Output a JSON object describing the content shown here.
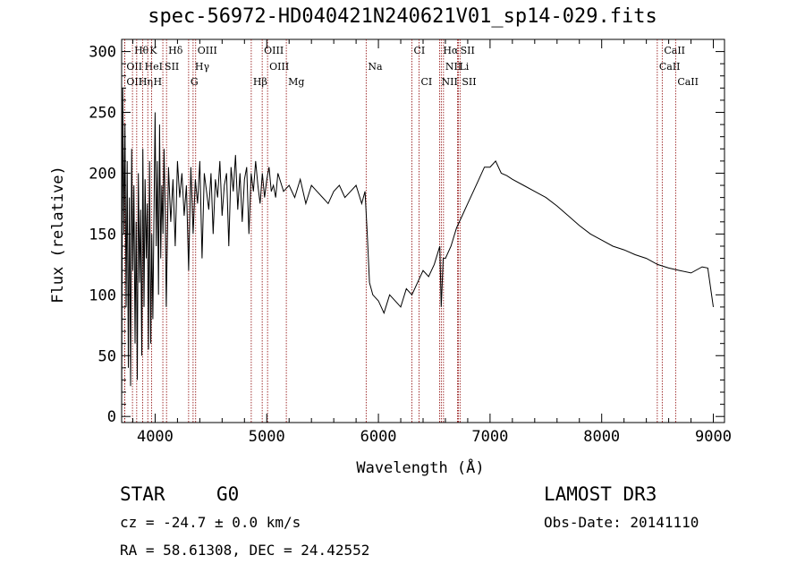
{
  "title": "spec-56972-HD040421N240621V01_sp14-029.fits",
  "info": {
    "object_class": "STAR",
    "subclass": "G0",
    "survey": "LAMOST DR3",
    "cz": "cz = -24.7 ± 0.0 km/s",
    "obs_date": "Obs-Date: 20141110",
    "coords": "RA =  58.61308, DEC =  24.42552"
  },
  "chart_data": {
    "type": "line",
    "xlabel": "Wavelength (Å)",
    "ylabel": "Flux (relative)",
    "xlim": [
      3700,
      9100
    ],
    "ylim": [
      -5,
      310
    ],
    "xticks": [
      4000,
      5000,
      6000,
      7000,
      8000,
      9000
    ],
    "yticks": [
      0,
      50,
      100,
      150,
      200,
      250,
      300
    ],
    "line_color": "#000000",
    "marker_color": "#8b0000",
    "spectrum": {
      "x": [
        3700,
        3710,
        3720,
        3730,
        3740,
        3750,
        3760,
        3770,
        3780,
        3790,
        3800,
        3810,
        3820,
        3830,
        3840,
        3850,
        3860,
        3870,
        3880,
        3890,
        3900,
        3910,
        3920,
        3930,
        3940,
        3950,
        3960,
        3970,
        3980,
        3990,
        4000,
        4010,
        4020,
        4030,
        4040,
        4050,
        4060,
        4070,
        4080,
        4090,
        4100,
        4120,
        4140,
        4160,
        4180,
        4200,
        4220,
        4240,
        4260,
        4280,
        4300,
        4320,
        4340,
        4360,
        4380,
        4400,
        4420,
        4440,
        4460,
        4480,
        4500,
        4520,
        4540,
        4560,
        4580,
        4600,
        4620,
        4640,
        4660,
        4680,
        4700,
        4720,
        4740,
        4760,
        4780,
        4800,
        4820,
        4840,
        4860,
        4880,
        4900,
        4920,
        4940,
        4960,
        4980,
        5000,
        5020,
        5040,
        5060,
        5080,
        5100,
        5150,
        5200,
        5250,
        5300,
        5350,
        5400,
        5450,
        5500,
        5550,
        5600,
        5650,
        5700,
        5750,
        5800,
        5850,
        5880,
        5900,
        5920,
        5950,
        6000,
        6050,
        6100,
        6150,
        6200,
        6250,
        6300,
        6350,
        6400,
        6450,
        6500,
        6550,
        6563,
        6580,
        6600,
        6650,
        6700,
        6750,
        6800,
        6850,
        6900,
        6950,
        7000,
        7050,
        7100,
        7150,
        7200,
        7300,
        7400,
        7500,
        7600,
        7700,
        7800,
        7900,
        8000,
        8100,
        8200,
        8300,
        8400,
        8500,
        8600,
        8700,
        8800,
        8900,
        8950,
        9000
      ],
      "y": [
        0,
        270,
        150,
        240,
        90,
        210,
        40,
        180,
        25,
        220,
        120,
        190,
        60,
        160,
        30,
        200,
        110,
        170,
        50,
        220,
        90,
        195,
        130,
        175,
        55,
        210,
        60,
        150,
        80,
        170,
        250,
        140,
        210,
        100,
        240,
        130,
        190,
        150,
        220,
        170,
        90,
        205,
        160,
        195,
        140,
        210,
        180,
        200,
        165,
        190,
        120,
        205,
        150,
        195,
        175,
        210,
        130,
        200,
        185,
        170,
        200,
        150,
        195,
        180,
        210,
        165,
        190,
        200,
        140,
        205,
        185,
        215,
        170,
        200,
        160,
        195,
        205,
        150,
        200,
        185,
        210,
        190,
        175,
        200,
        180,
        195,
        205,
        185,
        190,
        180,
        200,
        185,
        190,
        180,
        195,
        175,
        190,
        185,
        180,
        175,
        185,
        190,
        180,
        185,
        190,
        175,
        185,
        150,
        110,
        100,
        95,
        85,
        100,
        95,
        90,
        105,
        100,
        110,
        120,
        115,
        125,
        140,
        90,
        130,
        130,
        140,
        155,
        165,
        175,
        185,
        195,
        205,
        205,
        210,
        200,
        198,
        195,
        190,
        185,
        180,
        173,
        165,
        157,
        150,
        145,
        140,
        137,
        133,
        130,
        125,
        122,
        120,
        118,
        123,
        122,
        90
      ]
    },
    "lines": [
      {
        "label": "Hθ",
        "x": 3797,
        "row": 1
      },
      {
        "label": "K",
        "x": 3934,
        "row": 1
      },
      {
        "label": "Hδ",
        "x": 4102,
        "row": 1
      },
      {
        "label": "OIII",
        "x": 4363,
        "row": 1
      },
      {
        "label": "OIII",
        "x": 4959,
        "row": 1
      },
      {
        "label": "CI",
        "x": 6300,
        "row": 1
      },
      {
        "label": "Hα",
        "x": 6563,
        "row": 1
      },
      {
        "label": "SII",
        "x": 6717,
        "row": 1
      },
      {
        "label": "CaII",
        "x": 8542,
        "row": 1
      },
      {
        "label": "OII",
        "x": 3727,
        "row": 2
      },
      {
        "label": "HeI",
        "x": 3889,
        "row": 2
      },
      {
        "label": "SII",
        "x": 4069,
        "row": 2
      },
      {
        "label": "Hγ",
        "x": 4340,
        "row": 2
      },
      {
        "label": "OIII",
        "x": 5007,
        "row": 2
      },
      {
        "label": "Na",
        "x": 5890,
        "row": 2
      },
      {
        "label": "NII",
        "x": 6583,
        "row": 2
      },
      {
        "label": "Li",
        "x": 6708,
        "row": 2
      },
      {
        "label": "CaII",
        "x": 8498,
        "row": 2
      },
      {
        "label": "OII",
        "x": 3727,
        "row": 3
      },
      {
        "label": "Hη",
        "x": 3835,
        "row": 3
      },
      {
        "label": "H",
        "x": 3968,
        "row": 3
      },
      {
        "label": "G",
        "x": 4300,
        "row": 3
      },
      {
        "label": "Hβ",
        "x": 4861,
        "row": 3
      },
      {
        "label": "Mg",
        "x": 5175,
        "row": 3
      },
      {
        "label": "CI",
        "x": 6364,
        "row": 3
      },
      {
        "label": "NII",
        "x": 6548,
        "row": 3
      },
      {
        "label": "SII",
        "x": 6731,
        "row": 3
      },
      {
        "label": "CaII",
        "x": 8662,
        "row": 3
      }
    ]
  }
}
